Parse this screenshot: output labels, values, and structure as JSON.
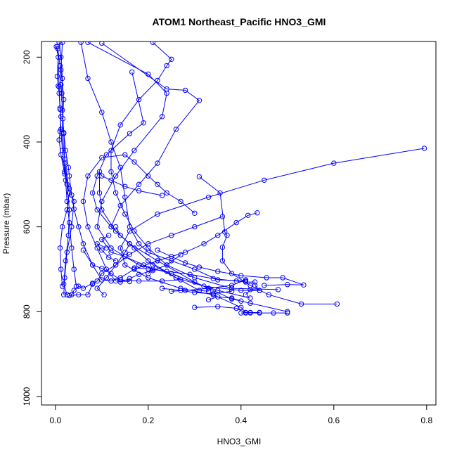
{
  "chart_data": {
    "type": "line",
    "title": "ATOM1 Northeast_Pacific HNO3_GMI",
    "xlabel": "HNO3_GMI",
    "ylabel": "Pressure (mbar)",
    "xlim": [
      -0.03,
      0.82
    ],
    "ylim": [
      1020,
      163
    ],
    "y_reversed": true,
    "x_ticks": [
      0.0,
      0.2,
      0.4,
      0.6,
      0.8
    ],
    "x_tick_labels": [
      "0.0",
      "0.2",
      "0.4",
      "0.6",
      "0.8"
    ],
    "y_ticks": [
      200,
      400,
      600,
      800,
      1000
    ],
    "y_tick_labels": [
      "200",
      "400",
      "600",
      "800",
      "1000"
    ],
    "grid": false,
    "legend": "none",
    "series_color": "#0000ff",
    "marker": "open-circle",
    "series": [
      {
        "points": [
          [
            0.015,
            165
          ],
          [
            0.012,
            230
          ],
          [
            0.018,
            300
          ],
          [
            0.014,
            380
          ],
          [
            0.02,
            440
          ],
          [
            0.025,
            500
          ],
          [
            0.03,
            560
          ],
          [
            0.028,
            620
          ],
          [
            0.022,
            680
          ],
          [
            0.018,
            735
          ],
          [
            0.025,
            760
          ]
        ]
      },
      {
        "points": [
          [
            0.005,
            175
          ],
          [
            0.008,
            270
          ],
          [
            0.01,
            320
          ],
          [
            0.012,
            370
          ],
          [
            0.015,
            420
          ],
          [
            0.02,
            470
          ],
          [
            0.03,
            510
          ],
          [
            0.04,
            540
          ],
          [
            0.035,
            600
          ],
          [
            0.025,
            660
          ],
          [
            0.02,
            720
          ],
          [
            0.018,
            760
          ]
        ]
      },
      {
        "points": [
          [
            0.002,
            175
          ],
          [
            0.006,
            200
          ],
          [
            0.004,
            245
          ],
          [
            0.006,
            268
          ],
          [
            0.008,
            285
          ],
          [
            0.01,
            323
          ],
          [
            0.012,
            340
          ],
          [
            0.01,
            375
          ],
          [
            0.008,
            395
          ],
          [
            0.012,
            430
          ],
          [
            0.02,
            475
          ],
          [
            0.03,
            520
          ],
          [
            0.025,
            560
          ],
          [
            0.015,
            600
          ],
          [
            0.01,
            650
          ],
          [
            0.012,
            700
          ],
          [
            0.015,
            740
          ]
        ]
      },
      {
        "points": [
          [
            0.005,
            180
          ],
          [
            0.01,
            220
          ],
          [
            0.012,
            265
          ],
          [
            0.015,
            325
          ],
          [
            0.018,
            378
          ],
          [
            0.022,
            420
          ],
          [
            0.028,
            460
          ],
          [
            0.03,
            480
          ],
          [
            0.035,
            525
          ],
          [
            0.04,
            558
          ],
          [
            0.05,
            600
          ],
          [
            0.06,
            640
          ],
          [
            0.08,
            690
          ],
          [
            0.1,
            725
          ],
          [
            0.12,
            728
          ]
        ]
      },
      {
        "points": [
          [
            0.008,
            165
          ],
          [
            0.012,
            200
          ],
          [
            0.015,
            250
          ],
          [
            0.014,
            285
          ],
          [
            0.016,
            345
          ],
          [
            0.018,
            380
          ],
          [
            0.02,
            450
          ],
          [
            0.022,
            490
          ],
          [
            0.025,
            540
          ],
          [
            0.03,
            590
          ],
          [
            0.035,
            650
          ],
          [
            0.04,
            700
          ],
          [
            0.045,
            740
          ]
        ]
      },
      {
        "points": [
          [
            0.055,
            165
          ],
          [
            0.07,
            250
          ],
          [
            0.1,
            330
          ],
          [
            0.12,
            400
          ],
          [
            0.14,
            460
          ],
          [
            0.15,
            530
          ],
          [
            0.16,
            600
          ],
          [
            0.18,
            640
          ],
          [
            0.2,
            660
          ],
          [
            0.25,
            680
          ],
          [
            0.3,
            700
          ],
          [
            0.35,
            725
          ],
          [
            0.41,
            728
          ]
        ]
      },
      {
        "points": [
          [
            0.07,
            165
          ],
          [
            0.2,
            240
          ],
          [
            0.24,
            285
          ],
          [
            0.23,
            340
          ],
          [
            0.17,
            420
          ],
          [
            0.13,
            480
          ],
          [
            0.1,
            540
          ],
          [
            0.09,
            600
          ],
          [
            0.12,
            650
          ],
          [
            0.18,
            690
          ],
          [
            0.25,
            710
          ],
          [
            0.32,
            740
          ],
          [
            0.4,
            750
          ],
          [
            0.44,
            750
          ]
        ]
      },
      {
        "points": [
          [
            0.1,
            167
          ],
          [
            0.24,
            275
          ],
          [
            0.28,
            278
          ],
          [
            0.31,
            302
          ],
          [
            0.26,
            370
          ],
          [
            0.22,
            450
          ],
          [
            0.18,
            500
          ],
          [
            0.14,
            550
          ],
          [
            0.12,
            600
          ],
          [
            0.16,
            640
          ],
          [
            0.22,
            680
          ],
          [
            0.3,
            730
          ],
          [
            0.38,
            770
          ],
          [
            0.42,
            780
          ],
          [
            0.5,
            800
          ]
        ]
      },
      {
        "points": [
          [
            0.165,
            235
          ],
          [
            0.19,
            355
          ],
          [
            0.16,
            380
          ],
          [
            0.11,
            430
          ],
          [
            0.09,
            480
          ],
          [
            0.08,
            520
          ],
          [
            0.09,
            560
          ],
          [
            0.12,
            600
          ],
          [
            0.16,
            640
          ],
          [
            0.2,
            680
          ],
          [
            0.26,
            720
          ],
          [
            0.35,
            750
          ],
          [
            0.42,
            768
          ]
        ]
      },
      {
        "points": [
          [
            0.21,
            165
          ],
          [
            0.25,
            205
          ],
          [
            0.24,
            220
          ],
          [
            0.22,
            255
          ],
          [
            0.18,
            300
          ],
          [
            0.14,
            360
          ],
          [
            0.12,
            420
          ],
          [
            0.12,
            470
          ],
          [
            0.13,
            520
          ],
          [
            0.15,
            570
          ],
          [
            0.17,
            610
          ],
          [
            0.2,
            650
          ],
          [
            0.24,
            690
          ],
          [
            0.3,
            720
          ],
          [
            0.38,
            745
          ],
          [
            0.48,
            748
          ]
        ]
      },
      {
        "points": [
          [
            0.795,
            415
          ],
          [
            0.6,
            450
          ],
          [
            0.45,
            490
          ],
          [
            0.33,
            530
          ],
          [
            0.22,
            570
          ],
          [
            0.16,
            610
          ],
          [
            0.14,
            650
          ],
          [
            0.15,
            690
          ],
          [
            0.2,
            720
          ],
          [
            0.27,
            745
          ],
          [
            0.34,
            760
          ],
          [
            0.4,
            790
          ],
          [
            0.41,
            802
          ],
          [
            0.42,
            802
          ],
          [
            0.44,
            802
          ]
        ]
      },
      {
        "points": [
          [
            0.31,
            482
          ],
          [
            0.355,
            520
          ],
          [
            0.365,
            612
          ],
          [
            0.37,
            620
          ],
          [
            0.36,
            648
          ],
          [
            0.36,
            680
          ],
          [
            0.38,
            710
          ],
          [
            0.42,
            738
          ],
          [
            0.46,
            760
          ],
          [
            0.53,
            782
          ],
          [
            0.607,
            782
          ]
        ]
      },
      {
        "points": [
          [
            0.435,
            567
          ],
          [
            0.415,
            573
          ],
          [
            0.39,
            590
          ],
          [
            0.35,
            620
          ],
          [
            0.32,
            640
          ],
          [
            0.28,
            660
          ],
          [
            0.22,
            680
          ],
          [
            0.17,
            700
          ],
          [
            0.14,
            720
          ],
          [
            0.12,
            728
          ]
        ]
      },
      {
        "points": [
          [
            0.3,
            568
          ],
          [
            0.27,
            540
          ],
          [
            0.24,
            520
          ],
          [
            0.22,
            500
          ],
          [
            0.2,
            480
          ],
          [
            0.17,
            447
          ],
          [
            0.15,
            430
          ],
          [
            0.1,
            437
          ],
          [
            0.07,
            480
          ],
          [
            0.06,
            540
          ],
          [
            0.07,
            600
          ],
          [
            0.09,
            650
          ],
          [
            0.11,
            700
          ],
          [
            0.13,
            728
          ],
          [
            0.16,
            729
          ]
        ]
      },
      {
        "points": [
          [
            0.23,
            526
          ],
          [
            0.18,
            515
          ],
          [
            0.15,
            505
          ],
          [
            0.12,
            490
          ],
          [
            0.1,
            480
          ],
          [
            0.095,
            470
          ],
          [
            0.095,
            520
          ],
          [
            0.1,
            560
          ],
          [
            0.13,
            610
          ],
          [
            0.17,
            650
          ],
          [
            0.21,
            690
          ],
          [
            0.26,
            720
          ],
          [
            0.31,
            750
          ],
          [
            0.33,
            752
          ]
        ]
      },
      {
        "points": [
          [
            0.36,
            576
          ],
          [
            0.3,
            600
          ],
          [
            0.25,
            620
          ],
          [
            0.2,
            640
          ],
          [
            0.16,
            665
          ],
          [
            0.13,
            690
          ],
          [
            0.1,
            710
          ],
          [
            0.09,
            728
          ],
          [
            0.08,
            735
          ],
          [
            0.07,
            760
          ],
          [
            0.05,
            760
          ],
          [
            0.03,
            762
          ]
        ]
      },
      {
        "points": [
          [
            0.06,
            655
          ],
          [
            0.08,
            690
          ],
          [
            0.1,
            698
          ],
          [
            0.12,
            710
          ],
          [
            0.14,
            725
          ],
          [
            0.18,
            728
          ],
          [
            0.23,
            728
          ],
          [
            0.27,
            725
          ]
        ]
      },
      {
        "points": [
          [
            0.22,
            655
          ],
          [
            0.25,
            670
          ],
          [
            0.28,
            685
          ],
          [
            0.31,
            695
          ],
          [
            0.35,
            705
          ],
          [
            0.4,
            715
          ],
          [
            0.455,
            720
          ],
          [
            0.49,
            720
          ],
          [
            0.535,
            737
          ],
          [
            0.5,
            736
          ],
          [
            0.45,
            738
          ]
        ]
      },
      {
        "points": [
          [
            0.17,
            697
          ],
          [
            0.2,
            699
          ],
          [
            0.24,
            705
          ],
          [
            0.29,
            712
          ],
          [
            0.34,
            722
          ],
          [
            0.39,
            728
          ],
          [
            0.41,
            730
          ],
          [
            0.43,
            730
          ]
        ]
      },
      {
        "points": [
          [
            0.105,
            760
          ],
          [
            0.09,
            745
          ],
          [
            0.11,
            720
          ],
          [
            0.13,
            690
          ],
          [
            0.15,
            660
          ],
          [
            0.16,
            640
          ],
          [
            0.14,
            620
          ],
          [
            0.13,
            600
          ]
        ]
      },
      {
        "points": [
          [
            0.27,
            666
          ],
          [
            0.24,
            690
          ],
          [
            0.21,
            703
          ],
          [
            0.18,
            712
          ],
          [
            0.16,
            722
          ],
          [
            0.14,
            730
          ]
        ]
      },
      {
        "points": [
          [
            0.41,
            725
          ],
          [
            0.38,
            738
          ],
          [
            0.33,
            745
          ],
          [
            0.28,
            750
          ],
          [
            0.25,
            752
          ]
        ]
      },
      {
        "points": [
          [
            0.38,
            752
          ],
          [
            0.34,
            758
          ],
          [
            0.3,
            755
          ],
          [
            0.27,
            750
          ],
          [
            0.23,
            745
          ]
        ]
      },
      {
        "points": [
          [
            0.47,
            803
          ],
          [
            0.44,
            803
          ],
          [
            0.42,
            803
          ],
          [
            0.4,
            803
          ],
          [
            0.5,
            803
          ]
        ]
      },
      {
        "points": [
          [
            0.33,
            772
          ],
          [
            0.35,
            765
          ],
          [
            0.38,
            768
          ],
          [
            0.4,
            775
          ]
        ]
      },
      {
        "points": [
          [
            0.43,
            738
          ],
          [
            0.44,
            750
          ],
          [
            0.42,
            748
          ],
          [
            0.41,
            760
          ]
        ]
      },
      {
        "points": [
          [
            0.08,
            733
          ],
          [
            0.06,
            745
          ],
          [
            0.05,
            740
          ],
          [
            0.04,
            750
          ],
          [
            0.035,
            760
          ]
        ]
      },
      {
        "points": [
          [
            0.3,
            790
          ],
          [
            0.35,
            788
          ],
          [
            0.39,
            792
          ],
          [
            0.41,
            803
          ]
        ]
      },
      {
        "points": [
          [
            0.11,
            650
          ],
          [
            0.09,
            640
          ],
          [
            0.1,
            655
          ],
          [
            0.115,
            672
          ],
          [
            0.13,
            680
          ]
        ]
      },
      {
        "points": [
          [
            0.115,
            620
          ],
          [
            0.1,
            630
          ],
          [
            0.12,
            660
          ],
          [
            0.15,
            670
          ],
          [
            0.19,
            690
          ],
          [
            0.21,
            700
          ],
          [
            0.2,
            710
          ]
        ]
      }
    ]
  }
}
